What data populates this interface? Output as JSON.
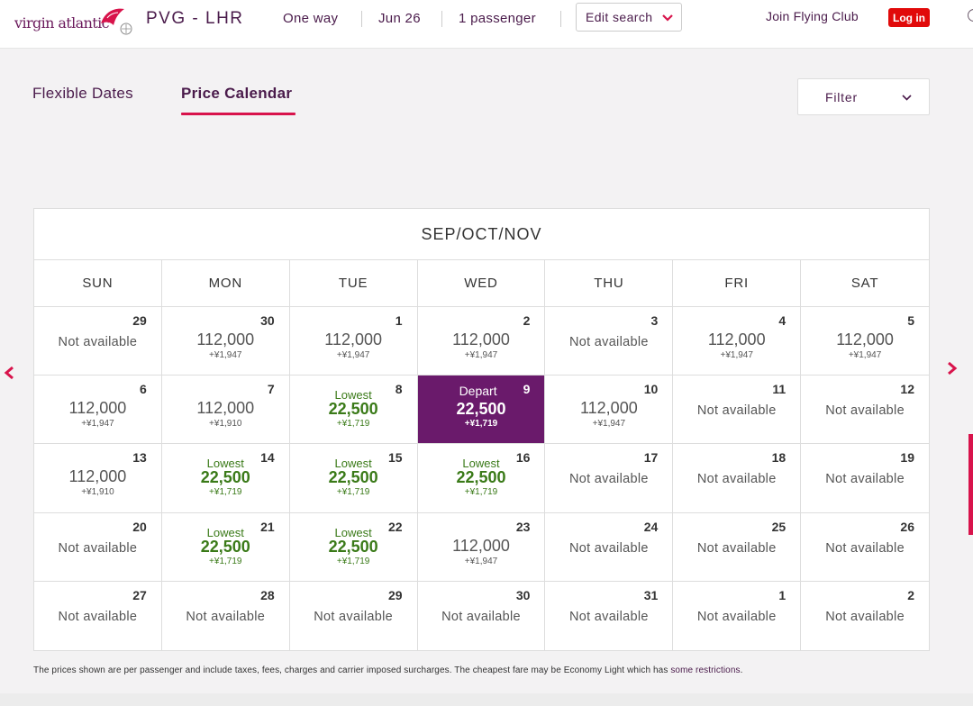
{
  "header": {
    "logo_text": "virgin atlantic",
    "route": "PVG - LHR",
    "trip_type": "One way",
    "date": "Jun 26",
    "passengers": "1 passenger",
    "edit_search_label": "Edit search",
    "join_label": "Join Flying Club",
    "login_label": "Log in"
  },
  "tabs": [
    {
      "label": "Flexible Dates",
      "active": false
    },
    {
      "label": "Price Calendar",
      "active": true
    }
  ],
  "filter": {
    "label": "Filter"
  },
  "calendar": {
    "title": "SEP/OCT/NOV",
    "weekdays": [
      "SUN",
      "MON",
      "TUE",
      "WED",
      "THU",
      "FRI",
      "SAT"
    ],
    "weeks": [
      [
        {
          "day": "29",
          "status": "Not available"
        },
        {
          "day": "30",
          "points": "112,000",
          "tax": "+¥1,947"
        },
        {
          "day": "1",
          "points": "112,000",
          "tax": "+¥1,947"
        },
        {
          "day": "2",
          "points": "112,000",
          "tax": "+¥1,947"
        },
        {
          "day": "3",
          "status": "Not available"
        },
        {
          "day": "4",
          "points": "112,000",
          "tax": "+¥1,947"
        },
        {
          "day": "5",
          "points": "112,000",
          "tax": "+¥1,947"
        }
      ],
      [
        {
          "day": "6",
          "points": "112,000",
          "tax": "+¥1,947"
        },
        {
          "day": "7",
          "points": "112,000",
          "tax": "+¥1,910"
        },
        {
          "day": "8",
          "label": "Lowest",
          "points": "22,500",
          "tax": "+¥1,719",
          "lowest": true
        },
        {
          "day": "9",
          "label": "Depart",
          "points": "22,500",
          "tax": "+¥1,719",
          "selected": true
        },
        {
          "day": "10",
          "points": "112,000",
          "tax": "+¥1,947"
        },
        {
          "day": "11",
          "status": "Not available"
        },
        {
          "day": "12",
          "status": "Not available"
        }
      ],
      [
        {
          "day": "13",
          "points": "112,000",
          "tax": "+¥1,910"
        },
        {
          "day": "14",
          "label": "Lowest",
          "points": "22,500",
          "tax": "+¥1,719",
          "lowest": true
        },
        {
          "day": "15",
          "label": "Lowest",
          "points": "22,500",
          "tax": "+¥1,719",
          "lowest": true
        },
        {
          "day": "16",
          "label": "Lowest",
          "points": "22,500",
          "tax": "+¥1,719",
          "lowest": true
        },
        {
          "day": "17",
          "status": "Not available"
        },
        {
          "day": "18",
          "status": "Not available"
        },
        {
          "day": "19",
          "status": "Not available"
        }
      ],
      [
        {
          "day": "20",
          "status": "Not available"
        },
        {
          "day": "21",
          "label": "Lowest",
          "points": "22,500",
          "tax": "+¥1,719",
          "lowest": true
        },
        {
          "day": "22",
          "label": "Lowest",
          "points": "22,500",
          "tax": "+¥1,719",
          "lowest": true
        },
        {
          "day": "23",
          "points": "112,000",
          "tax": "+¥1,947"
        },
        {
          "day": "24",
          "status": "Not available"
        },
        {
          "day": "25",
          "status": "Not available"
        },
        {
          "day": "26",
          "status": "Not available"
        }
      ],
      [
        {
          "day": "27",
          "status": "Not available"
        },
        {
          "day": "28",
          "status": "Not available"
        },
        {
          "day": "29",
          "status": "Not available"
        },
        {
          "day": "30",
          "status": "Not available"
        },
        {
          "day": "31",
          "status": "Not available"
        },
        {
          "day": "1",
          "status": "Not available"
        },
        {
          "day": "2",
          "status": "Not available"
        }
      ]
    ]
  },
  "footnote": {
    "text": "The prices shown are per passenger and include taxes, fees, charges and carrier imposed surcharges. The cheapest fare may be Economy Light which has ",
    "link": "some restrictions",
    "end": "."
  },
  "colors": {
    "brand_purple": "#6a1a6b",
    "accent_red": "#e10a0a",
    "tab_underline": "#d8134b",
    "lowest_green": "#3a7a18"
  },
  "icons": {
    "prev": "chevron-left-icon",
    "next": "chevron-right-icon",
    "edit_chevron": "chevron-down-icon",
    "filter_chevron": "chevron-down-icon"
  }
}
